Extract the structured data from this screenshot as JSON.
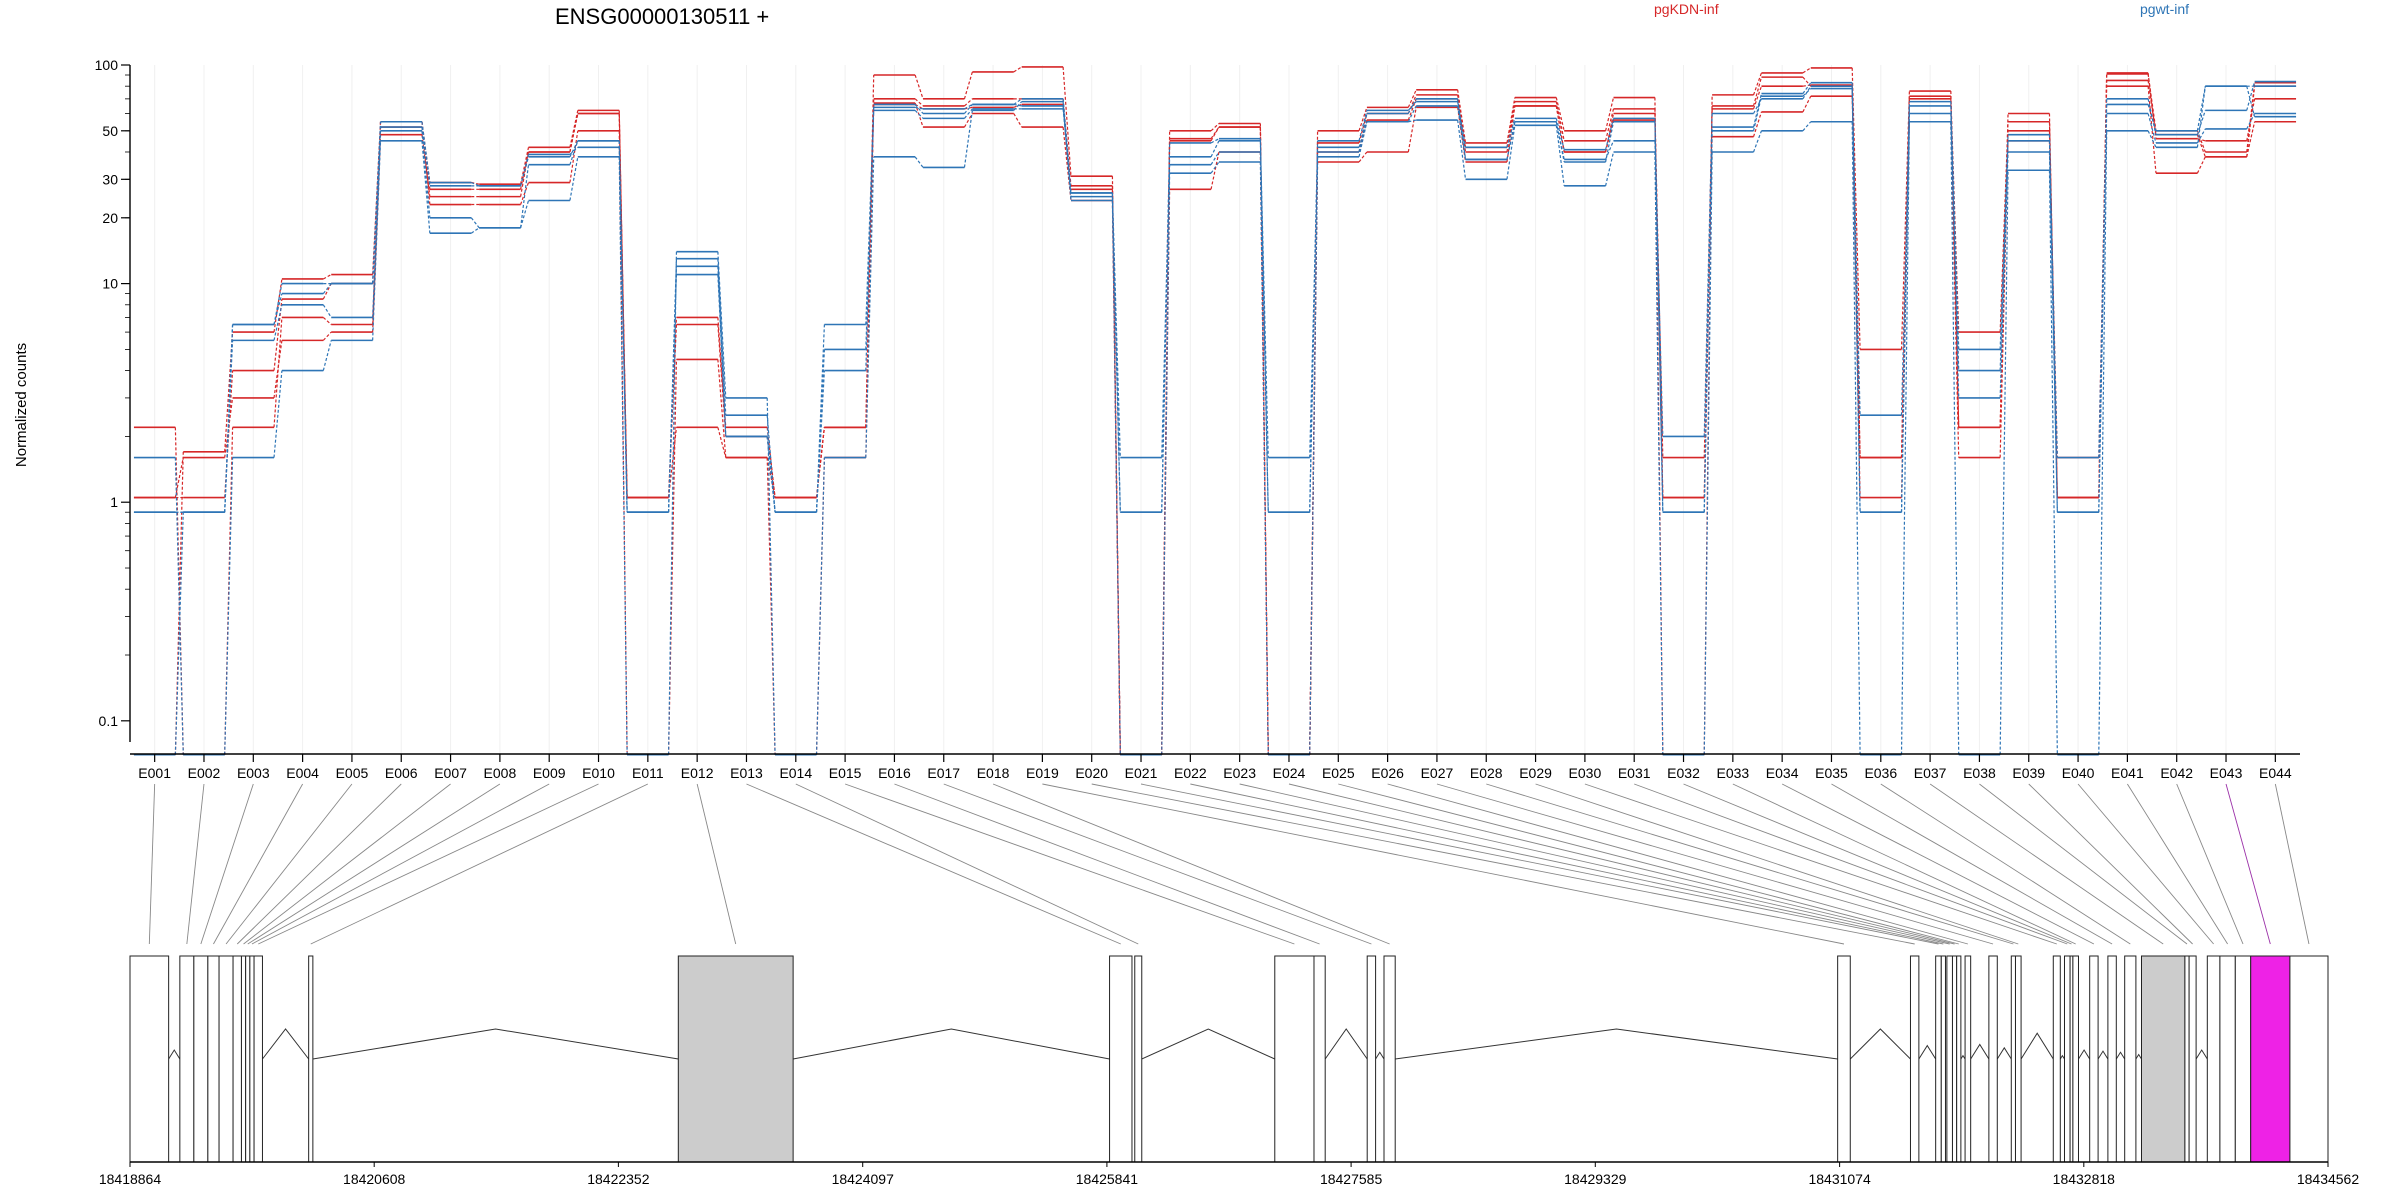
{
  "chart_data": {
    "type": "line",
    "title": "ENSG00000130511 +",
    "ylabel": "Normalized counts",
    "xlabel": "",
    "y_scale": "log",
    "ylim": [
      0.08,
      100
    ],
    "y_ticks": [
      "0.1",
      "1",
      "10",
      "20",
      "30",
      "50",
      "100"
    ],
    "legend_placement": "top",
    "colors": {
      "pgKDN-inf": "#d62728",
      "pgwt-inf": "#2e75b6",
      "highlight": "#ee22e6",
      "exon_fill": "#cccccc",
      "connector": "#888888"
    },
    "categories": [
      "E001",
      "E002",
      "E003",
      "E004",
      "E005",
      "E006",
      "E007",
      "E008",
      "E009",
      "E010",
      "E011",
      "E012",
      "E013",
      "E014",
      "E015",
      "E016",
      "E017",
      "E018",
      "E019",
      "E020",
      "E021",
      "E022",
      "E023",
      "E024",
      "E025",
      "E026",
      "E027",
      "E028",
      "E029",
      "E030",
      "E031",
      "E032",
      "E033",
      "E034",
      "E035",
      "E036",
      "E037",
      "E038",
      "E039",
      "E040",
      "E041",
      "E042",
      "E043",
      "E044"
    ],
    "series": [
      {
        "name": "pgKDN-inf",
        "color": "#d62728",
        "values": [
          0.07,
          1.7,
          6,
          10.5,
          11,
          55,
          29,
          28.5,
          42,
          62,
          1.05,
          6.5,
          2,
          1.05,
          2.2,
          90,
          70,
          93,
          98,
          31,
          0.07,
          50,
          54,
          0.07,
          50,
          64,
          77,
          44,
          71,
          50,
          71,
          0.07,
          73,
          92,
          97,
          5,
          76,
          2.2,
          60,
          1.05,
          91,
          50,
          40,
          83
        ]
      },
      {
        "name": "pgKDN-inf",
        "color": "#d62728",
        "values": [
          1.05,
          1.05,
          4,
          8.5,
          10,
          52,
          27,
          27,
          40,
          60,
          1.05,
          7,
          2.2,
          1.05,
          2.2,
          70,
          65,
          70,
          70,
          28,
          0.07,
          46,
          52,
          0.07,
          44,
          60,
          73,
          42,
          68,
          45,
          63,
          1.05,
          65,
          88,
          80,
          1.05,
          72,
          6,
          55,
          1.05,
          85,
          48,
          38,
          80
        ]
      },
      {
        "name": "pgKDN-inf",
        "color": "#d62728",
        "values": [
          2.2,
          0.07,
          2.2,
          7,
          6.5,
          55,
          23,
          23,
          29,
          50,
          0.07,
          4.5,
          1.6,
          0.07,
          1.6,
          67,
          52,
          60,
          52,
          24,
          0.07,
          27,
          40,
          0.07,
          36,
          40,
          64,
          36,
          65,
          40,
          60,
          1.6,
          47,
          61,
          72,
          1.6,
          55,
          1.6,
          45,
          1.6,
          80,
          32,
          38,
          55
        ]
      },
      {
        "name": "pgKDN-inf",
        "color": "#d62728",
        "values": [
          1.05,
          1.6,
          3,
          5.5,
          6,
          48,
          25,
          25,
          40,
          60,
          1.05,
          2.2,
          1.6,
          1.05,
          2.2,
          66,
          63,
          64,
          66,
          27,
          0.07,
          45,
          52,
          0.07,
          40,
          56,
          70,
          40,
          65,
          40,
          56,
          1.05,
          63,
          80,
          81,
          1.6,
          70,
          2.2,
          50,
          1.05,
          92,
          46,
          45,
          70
        ]
      },
      {
        "name": "pgwt-inf",
        "color": "#2e75b6",
        "values": [
          1.6,
          0.07,
          1.6,
          4,
          5.5,
          45,
          17,
          18,
          24,
          38,
          0.07,
          14,
          3,
          0.07,
          1.6,
          38,
          34,
          62,
          68,
          24,
          0.07,
          32,
          36,
          0.07,
          38,
          55,
          56,
          30,
          53,
          28,
          40,
          0.07,
          40,
          50,
          55,
          0.07,
          55,
          0.07,
          33,
          0.07,
          50,
          42,
          80,
          58
        ]
      },
      {
        "name": "pgwt-inf",
        "color": "#2e75b6",
        "values": [
          0.9,
          0.9,
          5.5,
          8,
          7,
          50,
          20,
          18,
          35,
          45,
          0.9,
          11,
          2,
          0.9,
          5,
          66,
          60,
          66,
          65,
          25,
          0.9,
          35,
          40,
          0.9,
          42,
          55,
          65,
          37,
          55,
          36,
          55,
          0.9,
          50,
          72,
          78,
          0.9,
          60,
          3,
          40,
          0.9,
          60,
          44,
          51,
          60
        ]
      },
      {
        "name": "pgwt-inf",
        "color": "#2e75b6",
        "values": [
          0.9,
          0.9,
          6.5,
          9,
          10,
          52,
          28,
          28,
          39,
          42,
          0.9,
          12,
          2,
          0.9,
          4,
          62,
          57,
          63,
          63,
          26,
          1.6,
          38,
          45,
          1.6,
          40,
          60,
          70,
          37,
          55,
          37,
          45,
          2,
          60,
          70,
          80,
          2.5,
          65,
          4,
          45,
          1.6,
          66,
          50,
          80,
          80
        ]
      },
      {
        "name": "pgwt-inf",
        "color": "#2e75b6",
        "values": [
          0.07,
          0.9,
          6.5,
          10,
          10,
          55,
          29,
          28,
          38,
          45,
          0.9,
          13,
          2.5,
          0.9,
          6.5,
          64,
          63,
          66,
          70,
          26,
          0.9,
          44,
          46,
          0.9,
          45,
          62,
          68,
          42,
          57,
          41,
          57,
          0.9,
          52,
          74,
          83,
          0.9,
          68,
          5,
          48,
          0.9,
          70,
          48,
          62,
          84
        ]
      }
    ],
    "gene_model": {
      "coordinate_labels": [
        "18418864",
        "18420608",
        "18422352",
        "18424097",
        "18425841",
        "18427585",
        "18429329",
        "18431074",
        "18432818",
        "18434562"
      ],
      "range": [
        18418864,
        18434562
      ],
      "highlighted_exon": "E043",
      "exons": [
        {
          "id": "E001",
          "start": 18418864,
          "end": 18419140
        },
        {
          "id": "E002",
          "start": 18419220,
          "end": 18419320
        },
        {
          "id": "E003",
          "start": 18419320,
          "end": 18419420
        },
        {
          "id": "E004",
          "start": 18419420,
          "end": 18419500
        },
        {
          "id": "E005",
          "start": 18419500,
          "end": 18419600
        },
        {
          "id": "E006",
          "start": 18419600,
          "end": 18419660
        },
        {
          "id": "E007",
          "start": 18419660,
          "end": 18419690
        },
        {
          "id": "E008",
          "start": 18419690,
          "end": 18419720
        },
        {
          "id": "E009",
          "start": 18419720,
          "end": 18419750
        },
        {
          "id": "E010",
          "start": 18419750,
          "end": 18419810
        },
        {
          "id": "E011",
          "start": 18420140,
          "end": 18420170
        },
        {
          "id": "E012",
          "start": 18422780,
          "end": 18423600
        },
        {
          "id": "E013",
          "start": 18425860,
          "end": 18426020
        },
        {
          "id": "E014",
          "start": 18426040,
          "end": 18426090
        },
        {
          "id": "E015",
          "start": 18427040,
          "end": 18427320
        },
        {
          "id": "E016",
          "start": 18427320,
          "end": 18427400
        },
        {
          "id": "E017",
          "start": 18427700,
          "end": 18427760
        },
        {
          "id": "E018",
          "start": 18427820,
          "end": 18427900
        },
        {
          "id": "E019",
          "start": 18431060,
          "end": 18431150
        },
        {
          "id": "E020",
          "start": 18431580,
          "end": 18431640
        },
        {
          "id": "E021",
          "start": 18431760,
          "end": 18431800
        },
        {
          "id": "E022",
          "start": 18431800,
          "end": 18431830
        },
        {
          "id": "E023",
          "start": 18431840,
          "end": 18431880
        },
        {
          "id": "E024",
          "start": 18431880,
          "end": 18431910
        },
        {
          "id": "E025",
          "start": 18431910,
          "end": 18431940
        },
        {
          "id": "E026",
          "start": 18431970,
          "end": 18432010
        },
        {
          "id": "E027",
          "start": 18432140,
          "end": 18432200
        },
        {
          "id": "E028",
          "start": 18432300,
          "end": 18432330
        },
        {
          "id": "E029",
          "start": 18432330,
          "end": 18432370
        },
        {
          "id": "E030",
          "start": 18432600,
          "end": 18432650
        },
        {
          "id": "E031",
          "start": 18432680,
          "end": 18432720
        },
        {
          "id": "E032",
          "start": 18432720,
          "end": 18432740
        },
        {
          "id": "E033",
          "start": 18432740,
          "end": 18432780
        },
        {
          "id": "E034",
          "start": 18432860,
          "end": 18432920
        },
        {
          "id": "E035",
          "start": 18432990,
          "end": 18433050
        },
        {
          "id": "E036",
          "start": 18433110,
          "end": 18433190
        },
        {
          "id": "E037",
          "start": 18433230,
          "end": 18433540
        },
        {
          "id": "E038",
          "start": 18433540,
          "end": 18433570
        },
        {
          "id": "E039",
          "start": 18433570,
          "end": 18433620
        },
        {
          "id": "E040",
          "start": 18433700,
          "end": 18433790
        },
        {
          "id": "E041",
          "start": 18433790,
          "end": 18433900
        },
        {
          "id": "E042",
          "start": 18433900,
          "end": 18434010
        },
        {
          "id": "E043",
          "start": 18434010,
          "end": 18434290
        },
        {
          "id": "E044",
          "start": 18434290,
          "end": 18434562
        }
      ]
    }
  },
  "legend": [
    {
      "label": "pgKDN-inf",
      "color": "#d62728"
    },
    {
      "label": "pgwt-inf",
      "color": "#2e75b6"
    }
  ]
}
